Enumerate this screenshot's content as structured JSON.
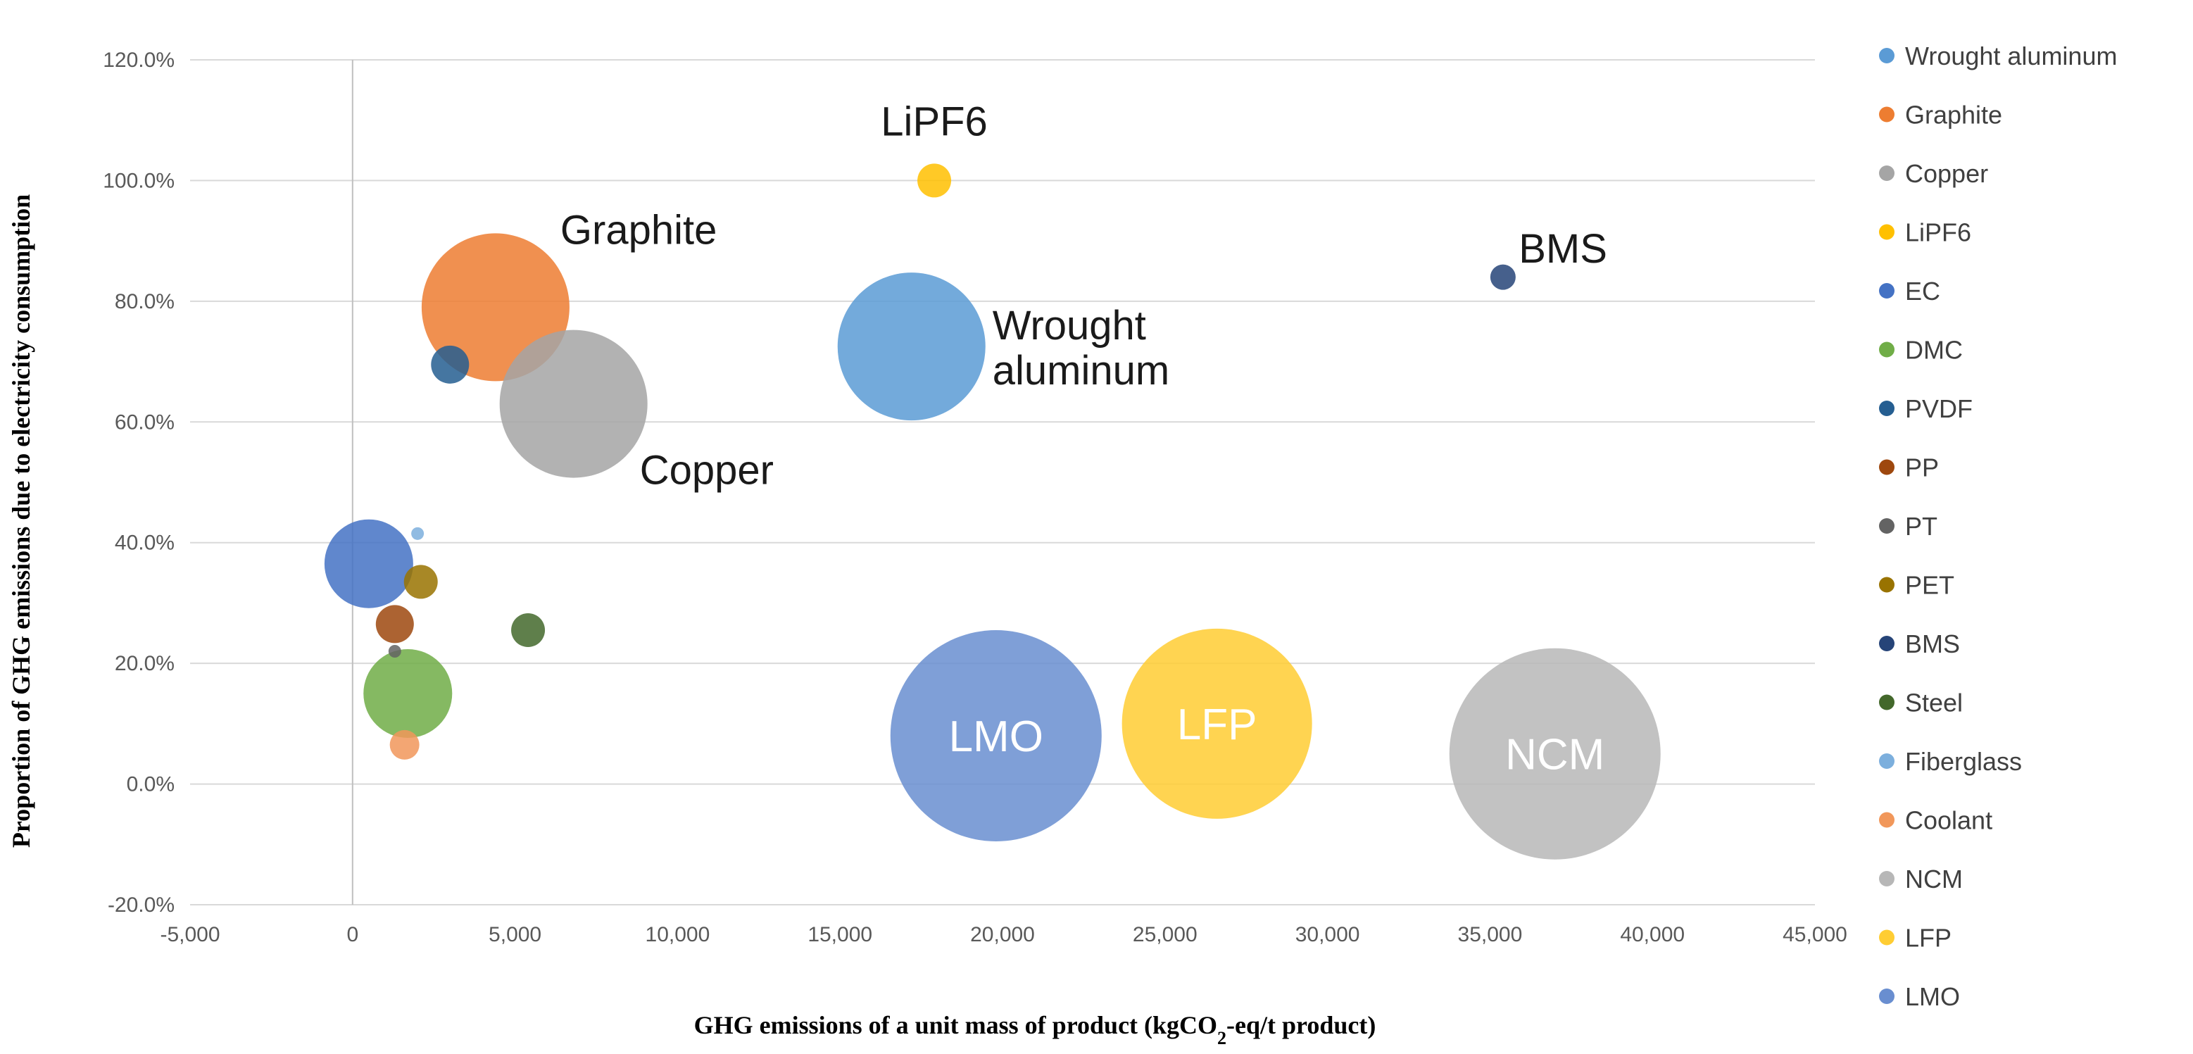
{
  "chart_data": {
    "type": "bubble",
    "xlabel_parts": [
      "GHG emissions of a unit mass of product (kgCO",
      "2",
      "-eq/t product)"
    ],
    "ylabel": "Proportion of GHG emissions due to electricity consumption",
    "xlim": [
      -5000,
      45000
    ],
    "ylim": [
      -20,
      120
    ],
    "xticks": [
      -5000,
      0,
      5000,
      10000,
      15000,
      20000,
      25000,
      30000,
      35000,
      40000,
      45000
    ],
    "xtick_labels": [
      "-5,000",
      "0",
      "5,000",
      "10,000",
      "15,000",
      "20,000",
      "25,000",
      "30,000",
      "35,000",
      "40,000",
      "45,000"
    ],
    "yticks": [
      -20,
      0,
      20,
      40,
      60,
      80,
      100,
      120
    ],
    "ytick_labels": [
      "-20.0%",
      "0.0%",
      "20.0%",
      "40.0%",
      "60.0%",
      "80.0%",
      "100.0%",
      "120.0%"
    ],
    "grid": "horizontal",
    "legend_position": "right",
    "series": [
      {
        "name": "Wrought aluminum",
        "color": "#5b9bd5",
        "x": 17200,
        "y": 72.5,
        "size": 17.5,
        "label": "Wrought\naluminum",
        "label_pos": "right"
      },
      {
        "name": "Graphite",
        "color": "#ed7d31",
        "x": 4400,
        "y": 79,
        "size": 17.5,
        "label": "Graphite",
        "label_pos": "upper-right"
      },
      {
        "name": "Copper",
        "color": "#a5a5a5",
        "x": 6800,
        "y": 63,
        "size": 17.5,
        "label": "Copper",
        "label_pos": "lower-right"
      },
      {
        "name": "LiPF6",
        "color": "#ffc000",
        "x": 17900,
        "y": 100,
        "size": 4,
        "label": "LiPF6",
        "label_pos": "above"
      },
      {
        "name": "EC",
        "color": "#4472c4",
        "x": 500,
        "y": 36.5,
        "size": 10.5,
        "label": "",
        "label_pos": ""
      },
      {
        "name": "DMC",
        "color": "#70ad47",
        "x": 1700,
        "y": 15,
        "size": 10.5,
        "label": "",
        "label_pos": ""
      },
      {
        "name": "PVDF",
        "color": "#255e91",
        "x": 3000,
        "y": 69.5,
        "size": 4.5,
        "label": "",
        "label_pos": ""
      },
      {
        "name": "PP",
        "color": "#9e480e",
        "x": 1300,
        "y": 26.5,
        "size": 4.5,
        "label": "",
        "label_pos": ""
      },
      {
        "name": "PT",
        "color": "#636363",
        "x": 1300,
        "y": 22,
        "size": 1.5,
        "label": "",
        "label_pos": ""
      },
      {
        "name": "PET",
        "color": "#997300",
        "x": 2100,
        "y": 33.5,
        "size": 4,
        "label": "",
        "label_pos": ""
      },
      {
        "name": "BMS",
        "color": "#264478",
        "x": 35400,
        "y": 84,
        "size": 3,
        "label": "BMS",
        "label_pos": "upper-right"
      },
      {
        "name": "Steel",
        "color": "#43682b",
        "x": 5400,
        "y": 25.5,
        "size": 4,
        "label": "",
        "label_pos": ""
      },
      {
        "name": "Fiberglass",
        "color": "#7cafdd",
        "x": 2000,
        "y": 41.5,
        "size": 1.5,
        "label": "",
        "label_pos": ""
      },
      {
        "name": "Coolant",
        "color": "#f1975a",
        "x": 1600,
        "y": 6.5,
        "size": 3.5,
        "label": "",
        "label_pos": ""
      },
      {
        "name": "NCM",
        "color": "#b7b7b7",
        "x": 37000,
        "y": 5,
        "size": 25,
        "label": "NCM",
        "label_pos": "center"
      },
      {
        "name": "LFP",
        "color": "#ffcd33",
        "x": 26600,
        "y": 10,
        "size": 22.5,
        "label": "LFP",
        "label_pos": "center"
      },
      {
        "name": "LMO",
        "color": "#698ed0",
        "x": 19800,
        "y": 8,
        "size": 25,
        "label": "LMO",
        "label_pos": "center"
      }
    ]
  }
}
